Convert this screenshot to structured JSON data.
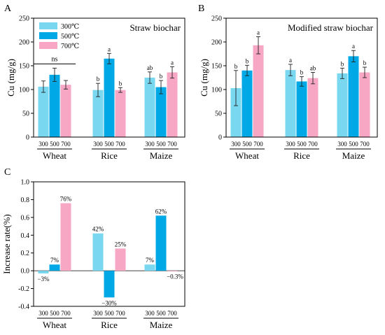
{
  "panels": [
    {
      "letter": "A",
      "type": "bar",
      "title": "Straw biochar",
      "ylabel": "Cu (mg/g)",
      "ylim": [
        0,
        250
      ],
      "yticks": [
        0,
        50,
        100,
        150,
        200,
        250
      ],
      "groups": [
        "Wheat",
        "Rice",
        "Maize"
      ],
      "subcategories": [
        "300",
        "500",
        "700"
      ],
      "legend": {
        "placement": "top-left",
        "entries": [
          "300℃",
          "500℃",
          "700℃"
        ]
      },
      "series": [
        {
          "name": "300℃",
          "color": "#7ad7f0",
          "values": [
            106,
            99,
            125
          ],
          "errors": [
            12,
            14,
            12
          ],
          "letters": [
            "",
            "b",
            "ab"
          ]
        },
        {
          "name": "500℃",
          "color": "#00a9e6",
          "values": [
            131,
            165,
            105
          ],
          "errors": [
            14,
            11,
            14
          ],
          "letters": [
            "",
            "a",
            "b"
          ]
        },
        {
          "name": "700℃",
          "color": "#f7a6c4",
          "values": [
            110,
            99,
            136
          ],
          "errors": [
            9,
            5,
            12
          ],
          "letters": [
            "",
            "b",
            "a"
          ]
        }
      ],
      "group_annotations": [
        "ns",
        "",
        ""
      ]
    },
    {
      "letter": "B",
      "type": "bar",
      "title": "Modified straw biochar",
      "ylabel": "Cu (mg/g)",
      "ylim": [
        0,
        250
      ],
      "yticks": [
        0,
        50,
        100,
        150,
        200,
        250
      ],
      "groups": [
        "Wheat",
        "Rice",
        "Maize"
      ],
      "subcategories": [
        "300",
        "500",
        "700"
      ],
      "series": [
        {
          "name": "300℃",
          "color": "#7ad7f0",
          "values": [
            103,
            141,
            134
          ],
          "errors": [
            37,
            12,
            11
          ],
          "letters": [
            "b",
            "a",
            "b"
          ]
        },
        {
          "name": "500℃",
          "color": "#00a9e6",
          "values": [
            140,
            117,
            170
          ],
          "errors": [
            11,
            10,
            12
          ],
          "letters": [
            "b",
            "b",
            "a"
          ]
        },
        {
          "name": "700℃",
          "color": "#f7a6c4",
          "values": [
            193,
            124,
            136
          ],
          "errors": [
            18,
            12,
            11
          ],
          "letters": [
            "a",
            "ab",
            "b"
          ]
        }
      ]
    },
    {
      "letter": "C",
      "type": "bar",
      "title": "",
      "ylabel": "Increase rate(%)",
      "ylim": [
        -0.4,
        1.0
      ],
      "yticks": [
        -0.4,
        -0.2,
        0.0,
        0.2,
        0.4,
        0.6,
        0.8,
        1.0
      ],
      "groups": [
        "Wheat",
        "Rice",
        "Maize"
      ],
      "subcategories": [
        "300",
        "500",
        "700"
      ],
      "series": [
        {
          "name": "300℃",
          "color": "#7ad7f0",
          "values": [
            -0.03,
            0.42,
            0.07
          ],
          "labels": [
            "−3%",
            "42%",
            "7%"
          ]
        },
        {
          "name": "500℃",
          "color": "#00a9e6",
          "values": [
            0.07,
            -0.3,
            0.62
          ],
          "labels": [
            "7%",
            "−30%",
            "62%"
          ]
        },
        {
          "name": "700℃",
          "color": "#f7a6c4",
          "values": [
            0.76,
            0.25,
            -0.003
          ],
          "labels": [
            "76%",
            "25%",
            "−0.3%"
          ]
        }
      ]
    }
  ]
}
